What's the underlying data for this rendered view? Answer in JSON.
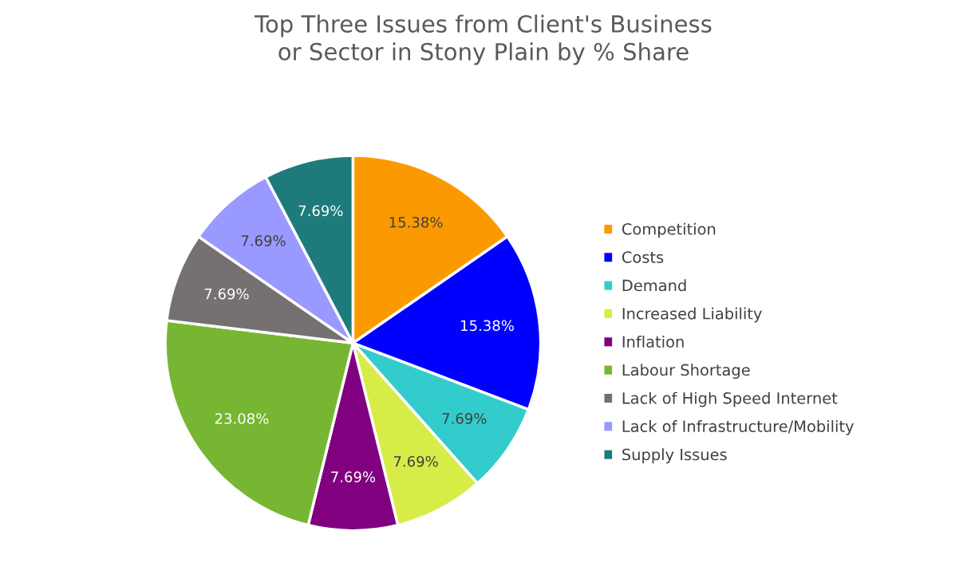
{
  "chart_data": {
    "type": "pie",
    "title": "Top Three Issues from Client's Business\nor Sector in Stony Plain by % Share",
    "categories": [
      "Competition",
      "Costs",
      "Demand",
      "Increased Liability",
      "Inflation",
      "Labour Shortage",
      "Lack of High Speed Internet",
      "Lack of Infrastructure/Mobility",
      "Supply Issues"
    ],
    "values": [
      15.38,
      15.38,
      7.69,
      7.69,
      7.69,
      23.08,
      7.69,
      7.69,
      7.69
    ],
    "colors": [
      "#fb9a00",
      "#0000ff",
      "#33cccc",
      "#d7ec47",
      "#800080",
      "#77b632",
      "#767171",
      "#9999ff",
      "#1e7b7b"
    ],
    "value_labels": [
      "15.38%",
      "15.38%",
      "7.69%",
      "7.69%",
      "7.69%",
      "23.08%",
      "7.69%",
      "7.69%",
      "7.69%"
    ],
    "legend": "right"
  }
}
